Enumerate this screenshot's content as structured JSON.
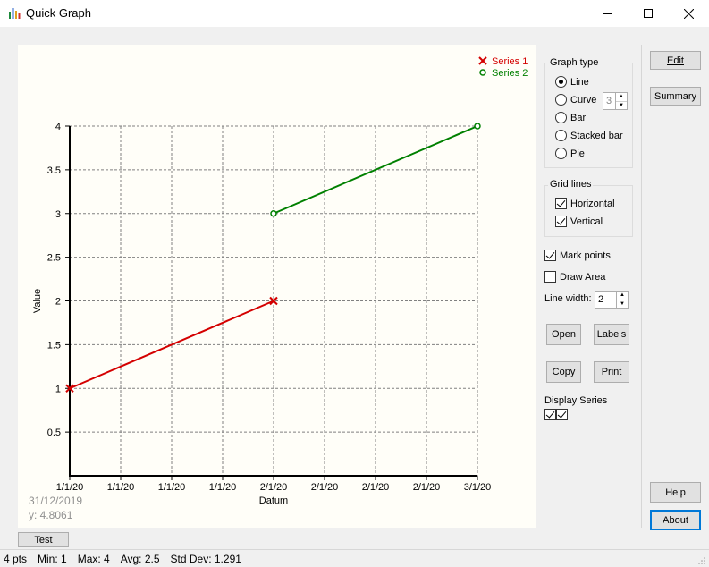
{
  "window": {
    "title": "Quick Graph",
    "minimize_icon": "minimize-icon",
    "maximize_icon": "maximize-icon",
    "close_icon": "close-icon"
  },
  "chart_data": {
    "type": "line",
    "title": "",
    "xlabel": "Datum",
    "ylabel": "Value",
    "ylim": [
      0,
      4
    ],
    "yticks": [
      "0.5",
      "1",
      "1.5",
      "2",
      "2.5",
      "3",
      "3.5",
      "4"
    ],
    "xticks": [
      "1/1/20",
      "1/1/20",
      "1/1/20",
      "1/1/20",
      "2/1/20",
      "2/1/20",
      "2/1/20",
      "2/1/20",
      "3/1/20"
    ],
    "grid": {
      "horizontal": true,
      "vertical": true
    },
    "legend_placement": "top-right",
    "series": [
      {
        "name": "Series 1",
        "color": "#d40000",
        "marker": "x",
        "points": [
          {
            "x": "1/1/20",
            "y": 1
          },
          {
            "x": "2/1/20",
            "y": 2
          }
        ]
      },
      {
        "name": "Series 2",
        "color": "#008000",
        "marker": "o",
        "points": [
          {
            "x": "2/1/20",
            "y": 3
          },
          {
            "x": "3/1/20",
            "y": 4
          }
        ]
      }
    ]
  },
  "cursor": {
    "date": "31/12/2019",
    "y": "y: 4.8061"
  },
  "graph_type": {
    "title": "Graph type",
    "options": [
      "Line",
      "Curve",
      "Bar",
      "Stacked bar",
      "Pie"
    ],
    "selected": "Line",
    "curve_value": "3"
  },
  "grid_lines": {
    "title": "Grid lines",
    "horizontal": "Horizontal",
    "vertical": "Vertical"
  },
  "options": {
    "mark_points": "Mark points",
    "draw_area": "Draw Area",
    "line_width_label": "Line width:",
    "line_width_value": "2"
  },
  "buttons": {
    "open": "Open",
    "labels": "Labels",
    "copy": "Copy",
    "print": "Print",
    "edit": "Edit",
    "summary": "Summary",
    "help": "Help",
    "about": "About",
    "test": "Test"
  },
  "display_series": {
    "title": "Display Series"
  },
  "status": {
    "pts": "4 pts",
    "min": "Min: 1",
    "max": "Max: 4",
    "avg": "Avg: 2.5",
    "std": "Std Dev: 1.291"
  }
}
